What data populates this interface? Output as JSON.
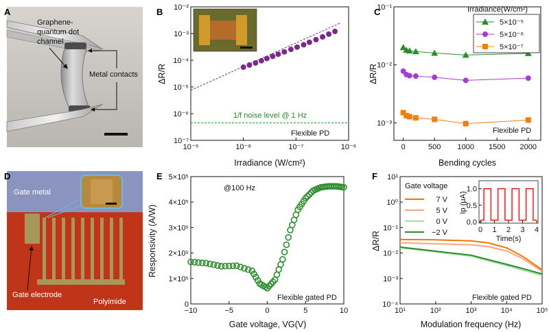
{
  "panels": {
    "A": {
      "letter": "A",
      "channel_lines": [
        "Graphene-",
        "quantum dot",
        "channel"
      ],
      "contacts": "Metal contacts"
    },
    "B": {
      "letter": "B",
      "noise_label": "1/f noise level @ 1 Hz",
      "device": "Flexible PD"
    },
    "C": {
      "letter": "C",
      "legend_title": "Irradiance(W/cm²)",
      "device": "Flexible PD"
    },
    "D": {
      "letter": "D",
      "gate_metal": "Gate metal",
      "gate_electrode": "Gate electrode",
      "substrate": "Polyimide"
    },
    "E": {
      "letter": "E",
      "annotation": "@100 Hz",
      "device": "Flexible gated PD"
    },
    "F": {
      "letter": "F",
      "legend_title": "Gate voltage",
      "device": "Flexible gated PD",
      "inset_xlabel": "Time(s)",
      "inset_ylabel": "Ip (μA)"
    }
  },
  "chart_data": [
    {
      "id": "B",
      "type": "scatter",
      "title": "",
      "xlabel": "Irradiance (W/cm²)",
      "ylabel": "ΔR/R",
      "xscale": "log",
      "yscale": "log",
      "xlim": [
        1e-09,
        1e-06
      ],
      "ylim": [
        1e-07,
        0.01
      ],
      "xticks": [
        "10⁻⁹",
        "10⁻⁸",
        "10⁻⁷",
        "10⁻⁶"
      ],
      "yticks": [
        "10⁻⁷",
        "10⁻⁶",
        "10⁻⁵",
        "10⁻⁴",
        "10⁻³",
        "10⁻²"
      ],
      "series": [
        {
          "name": "measured",
          "color": "#7b2a8c",
          "x": [
            1e-08,
            1.3e-08,
            1.7e-08,
            2.2e-08,
            2.8e-08,
            3.6e-08,
            4.6e-08,
            6e-08,
            8e-08,
            1.05e-07,
            1.4e-07,
            1.8e-07,
            2.4e-07,
            3.2e-07,
            4.2e-07,
            5.5e-07
          ],
          "y": [
            5.5e-05,
            6.6e-05,
            7.9e-05,
            9.6e-05,
            0.000116,
            0.00014,
            0.000168,
            0.000205,
            0.000255,
            0.00031,
            0.00038,
            0.00047,
            0.00059,
            0.00075,
            0.00095,
            0.0012
          ]
        },
        {
          "name": "fit",
          "color": "#7b2a8c",
          "x": [
            1e-09,
            7e-07
          ],
          "y": [
            7.5e-06,
            0.0025
          ]
        },
        {
          "name": "1/f noise level @ 1 Hz",
          "color": "#2a9a3a",
          "x": [
            1e-09,
            1e-06
          ],
          "y": [
            4.5e-07,
            4.5e-07
          ]
        }
      ]
    },
    {
      "id": "C",
      "type": "line",
      "title": "",
      "xlabel": "Bending cycles",
      "ylabel": "ΔR/R",
      "yscale": "log",
      "xlim": [
        -150,
        2200
      ],
      "ylim": [
        0.0005,
        0.1
      ],
      "xticks": [
        "0",
        "500",
        "1000",
        "1500",
        "2000"
      ],
      "yticks": [
        "10⁻³",
        "10⁻²",
        "10⁻¹"
      ],
      "categories": [
        0,
        50,
        100,
        200,
        500,
        1000,
        2000
      ],
      "series": [
        {
          "name": "5×10⁻⁵",
          "marker": "triangle",
          "color": "#2e8b2e",
          "values": [
            0.02,
            0.018,
            0.0175,
            0.017,
            0.016,
            0.0148,
            0.0158
          ]
        },
        {
          "name": "5×10⁻⁶",
          "marker": "circle",
          "color": "#a43dd6",
          "values": [
            0.0078,
            0.0068,
            0.0065,
            0.0064,
            0.0061,
            0.0054,
            0.0059
          ]
        },
        {
          "name": "5×10⁻⁷",
          "marker": "square",
          "color": "#f07f10",
          "values": [
            0.0015,
            0.00133,
            0.00128,
            0.00122,
            0.00115,
            0.00097,
            0.00112
          ]
        }
      ]
    },
    {
      "id": "E",
      "type": "scatter",
      "title": "",
      "xlabel": "Gate voltage, VG(V)",
      "ylabel": "Responsivity (A/W)",
      "xlim": [
        -10,
        10
      ],
      "ylim": [
        0,
        500000
      ],
      "xticks": [
        "−10",
        "−5",
        "0",
        "5",
        "10"
      ],
      "yticks": [
        "0",
        "1×10⁵",
        "2×10⁵",
        "3×10⁵",
        "4×10⁵",
        "5×10⁵"
      ],
      "series": [
        {
          "name": "responsivity",
          "color": "#2e8b2e",
          "x": [
            -10,
            -8,
            -6,
            -4,
            -2,
            -1,
            0,
            1,
            2,
            3,
            4,
            5,
            6,
            7,
            8,
            9,
            10
          ],
          "y": [
            165000,
            160000,
            148000,
            150000,
            130000,
            80000,
            62000,
            95000,
            175000,
            290000,
            370000,
            415000,
            445000,
            458000,
            462000,
            462000,
            458000
          ]
        }
      ]
    },
    {
      "id": "F",
      "type": "line",
      "title": "",
      "xlabel": "Modulation frequency (Hz)",
      "ylabel": "ΔR/R",
      "xscale": "log",
      "yscale": "log",
      "xlim": [
        10,
        100000
      ],
      "ylim": [
        0.0001,
        10
      ],
      "xticks": [
        "10¹",
        "10²",
        "10³",
        "10⁴",
        "10⁵"
      ],
      "yticks": [
        "10⁻⁴",
        "10⁻³",
        "10⁻²",
        "10⁻¹",
        "10⁰",
        "10¹"
      ],
      "series": [
        {
          "name": "7 V",
          "color": "#f07800",
          "x": [
            10,
            100,
            1000,
            3000,
            10000,
            30000,
            100000
          ],
          "y": [
            0.034,
            0.033,
            0.03,
            0.025,
            0.016,
            0.007,
            0.0022
          ]
        },
        {
          "name": "5 V",
          "color": "#f3a77a",
          "x": [
            10,
            100,
            1000,
            3000,
            10000,
            30000,
            100000
          ],
          "y": [
            0.025,
            0.023,
            0.021,
            0.018,
            0.012,
            0.0058,
            0.0019
          ]
        },
        {
          "name": "0 V",
          "color": "#a4e0a4",
          "x": [
            10,
            100,
            1000,
            3000,
            10000,
            30000,
            100000
          ],
          "y": [
            0.016,
            0.011,
            0.0075,
            0.005,
            0.0032,
            0.0021,
            0.0013
          ]
        },
        {
          "name": "−2 V",
          "color": "#2b8a2b",
          "x": [
            10,
            100,
            1000,
            3000,
            10000,
            30000,
            100000
          ],
          "y": [
            0.017,
            0.0118,
            0.0082,
            0.0055,
            0.0036,
            0.0024,
            0.0015
          ]
        }
      ],
      "inset": {
        "type": "line",
        "xlabel": "Time(s)",
        "ylabel": "Ip (μA)",
        "xlim": [
          0,
          4
        ],
        "ylim": [
          0,
          1.2
        ],
        "xticks": [
          "0",
          "1",
          "2",
          "3",
          "4"
        ],
        "yticks": [
          "0.0",
          "0.5",
          "1.0"
        ],
        "x": [
          0,
          0.25,
          0.25,
          0.75,
          0.75,
          1.25,
          1.25,
          1.75,
          1.75,
          2.25,
          2.25,
          2.75,
          2.75,
          3.25,
          3.25,
          3.75,
          3.75,
          4.0
        ],
        "y": [
          0.05,
          0.05,
          1.0,
          1.0,
          0.05,
          0.05,
          1.0,
          1.0,
          0.05,
          0.05,
          1.0,
          1.0,
          0.05,
          0.05,
          1.0,
          1.0,
          0.05,
          0.05
        ],
        "color": "#e01818"
      }
    }
  ]
}
